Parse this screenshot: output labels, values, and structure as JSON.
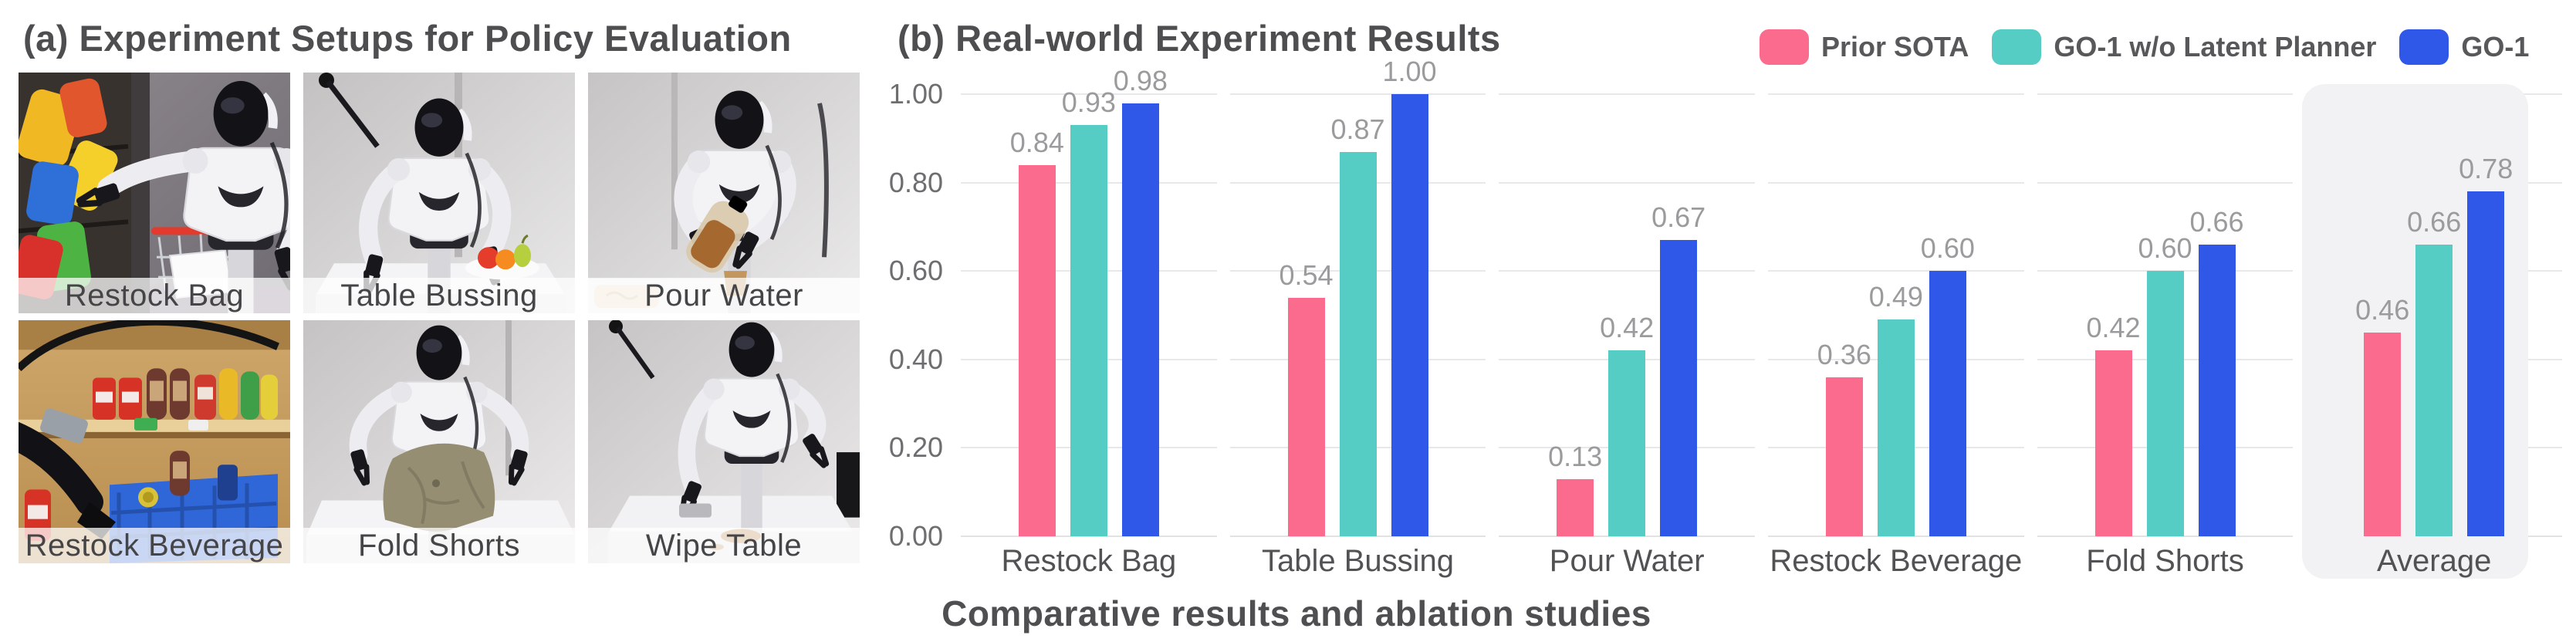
{
  "panel_a": {
    "title": "(a) Experiment Setups for Policy Evaluation",
    "photos": [
      {
        "label": "Restock Bag",
        "scene": "restock-bag"
      },
      {
        "label": "Table Bussing",
        "scene": "table-bussing"
      },
      {
        "label": "Pour Water",
        "scene": "pour-water"
      },
      {
        "label": "Restock Beverage",
        "scene": "restock-beverage"
      },
      {
        "label": "Fold Shorts",
        "scene": "fold-shorts"
      },
      {
        "label": "Wipe Table",
        "scene": "wipe-table"
      }
    ]
  },
  "panel_b": {
    "title": "(b) Real-world Experiment Results",
    "caption": "Comparative results and ablation studies"
  },
  "colors": {
    "prior_sota": "#FB6B8E",
    "go1_wo_latent_planner": "#55CDC4",
    "go1": "#2F58E8",
    "gridline": "#E8E8EA",
    "highlight": "#F2F2F4",
    "value_label": "#9B9B9D",
    "title_text": "#4E4E50"
  },
  "chart_data": {
    "type": "bar",
    "title": "(b) Real-world Experiment Results",
    "categories": [
      "Restock Bag",
      "Table Bussing",
      "Pour Water",
      "Restock Beverage",
      "Fold Shorts",
      "Average"
    ],
    "series": [
      {
        "name": "Prior SOTA",
        "color": "#FB6B8E",
        "values": [
          0.84,
          0.54,
          0.13,
          0.36,
          0.42,
          0.46
        ]
      },
      {
        "name": "GO-1 w/o Latent Planner",
        "color": "#55CDC4",
        "values": [
          0.93,
          0.87,
          0.42,
          0.49,
          0.6,
          0.66
        ]
      },
      {
        "name": "GO-1",
        "color": "#2F58E8",
        "values": [
          0.98,
          1.0,
          0.67,
          0.6,
          0.66,
          0.78
        ]
      }
    ],
    "ylim": [
      0,
      1
    ],
    "ytick_labels": [
      "1.00",
      "0.80",
      "0.60",
      "0.40",
      "0.20",
      "0.00"
    ],
    "grid": true,
    "value_labels": true,
    "legend_position": "top-right",
    "highlight_category": "Average",
    "caption": "Comparative results and ablation studies"
  }
}
